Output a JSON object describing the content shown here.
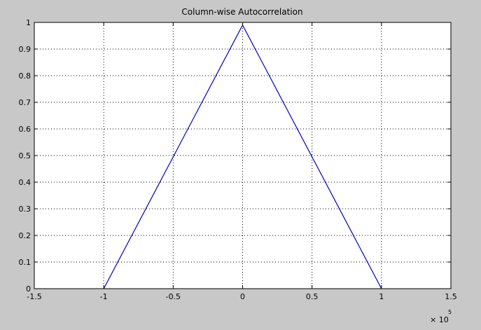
{
  "chart_data": {
    "type": "line",
    "title": "Column-wise Autocorrelation",
    "xlabel": "",
    "ylabel": "",
    "xlim": [
      -1.5,
      1.5
    ],
    "ylim": [
      0,
      1
    ],
    "x_scale_label": {
      "base": "× 10",
      "exponent": "5"
    },
    "grid": true,
    "x_ticks": [
      -1.5,
      -1,
      -0.5,
      0,
      0.5,
      1,
      1.5
    ],
    "x_tick_labels": [
      "-1.5",
      "-1",
      "-0.5",
      "0",
      "0.5",
      "1",
      "1.5"
    ],
    "y_ticks": [
      0,
      0.1,
      0.2,
      0.3,
      0.4,
      0.5,
      0.6,
      0.7,
      0.8,
      0.9,
      1
    ],
    "y_tick_labels": [
      "0",
      "0.1",
      "0.2",
      "0.3",
      "0.4",
      "0.5",
      "0.6",
      "0.7",
      "0.8",
      "0.9",
      "1"
    ],
    "series": [
      {
        "color": "#0000c8",
        "x": [
          -1,
          0,
          1
        ],
        "y": [
          0,
          0.99,
          0
        ]
      }
    ]
  }
}
